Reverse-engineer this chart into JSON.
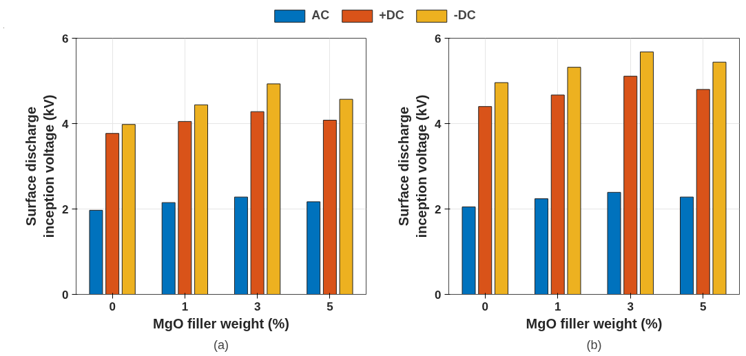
{
  "chart_data": [
    {
      "type": "bar",
      "categories": [
        "0",
        "1",
        "3",
        "5"
      ],
      "xlabel": "MgO filler weight (%)",
      "ylabel": "Surface discharge\ninception voltage (kV)",
      "ylim": [
        0,
        6
      ],
      "yticks": [
        0,
        2,
        4,
        6
      ],
      "grid": true,
      "legend": "top",
      "annotations": [
        "(a)"
      ],
      "series": [
        {
          "name": "AC",
          "color": "#0072bd",
          "values": [
            1.97,
            2.15,
            2.28,
            2.17
          ]
        },
        {
          "name": "+DC",
          "color": "#d95319",
          "values": [
            3.77,
            4.05,
            4.28,
            4.08
          ]
        },
        {
          "name": "-DC",
          "color": "#edb120",
          "values": [
            3.98,
            4.44,
            4.93,
            4.57
          ]
        }
      ]
    },
    {
      "type": "bar",
      "categories": [
        "0",
        "1",
        "3",
        "5"
      ],
      "xlabel": "MgO filler weight (%)",
      "ylabel": "Surface discharge\ninception voltage (kV)",
      "ylim": [
        0,
        6
      ],
      "yticks": [
        0,
        2,
        4,
        6
      ],
      "grid": true,
      "annotations": [
        "(b)"
      ],
      "series": [
        {
          "color": "#0072bd",
          "values": [
            2.05,
            2.24,
            2.39,
            2.28
          ]
        },
        {
          "color": "#d95319",
          "values": [
            4.4,
            4.67,
            5.11,
            4.8
          ]
        },
        {
          "color": "#edb120",
          "values": [
            4.96,
            5.32,
            5.68,
            5.44
          ]
        }
      ]
    }
  ]
}
